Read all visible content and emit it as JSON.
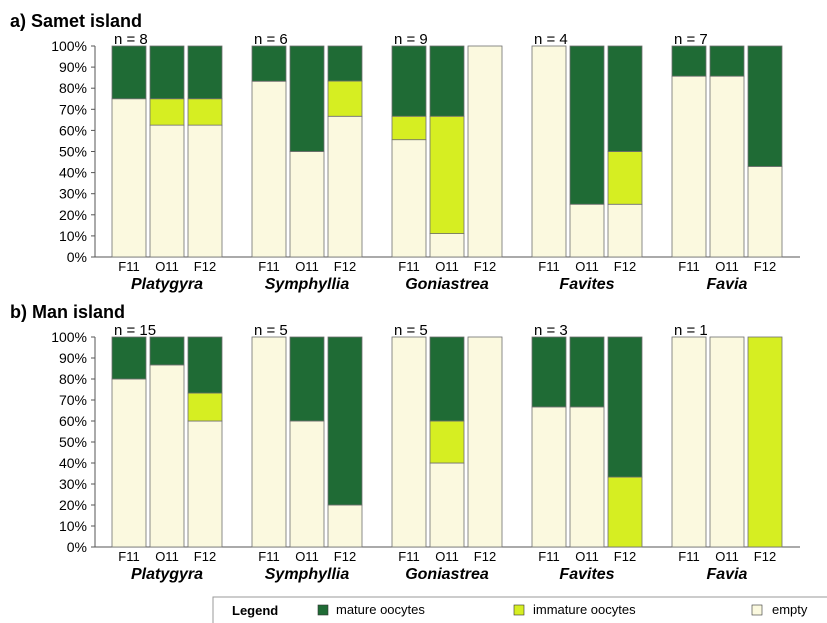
{
  "colors": {
    "mature": "#1f6b35",
    "immature": "#d6ee22",
    "empty": "#fbf9df",
    "stroke": "#6f6f6f"
  },
  "legend": {
    "title": "Legend",
    "items": [
      {
        "key": "mature",
        "label": "mature oocytes"
      },
      {
        "key": "immature",
        "label": "immature oocytes"
      },
      {
        "key": "empty",
        "label": "empty"
      }
    ]
  },
  "chart_data": [
    {
      "type": "bar",
      "stacked": true,
      "title": "a) Samet island",
      "yticks": [
        "0%",
        "10%",
        "20%",
        "30%",
        "40%",
        "50%",
        "60%",
        "70%",
        "80%",
        "90%",
        "100%"
      ],
      "ylim": [
        0,
        100
      ],
      "stack_order": [
        "empty",
        "immature",
        "mature"
      ],
      "groups": [
        {
          "genus": "Platygyra",
          "n_label": "n = 8",
          "bars": [
            {
              "label": "F11",
              "empty": 75,
              "immature": 0,
              "mature": 25
            },
            {
              "label": "O11",
              "empty": 62.5,
              "immature": 12.5,
              "mature": 25
            },
            {
              "label": "F12",
              "empty": 62.5,
              "immature": 12.5,
              "mature": 25
            }
          ]
        },
        {
          "genus": "Symphyllia",
          "n_label": "n = 6",
          "bars": [
            {
              "label": "F11",
              "empty": 83.3,
              "immature": 0,
              "mature": 16.7
            },
            {
              "label": "O11",
              "empty": 50,
              "immature": 0,
              "mature": 50
            },
            {
              "label": "F12",
              "empty": 66.7,
              "immature": 16.7,
              "mature": 16.6
            }
          ]
        },
        {
          "genus": "Goniastrea",
          "n_label": "n = 9",
          "bars": [
            {
              "label": "F11",
              "empty": 55.6,
              "immature": 11.1,
              "mature": 33.3
            },
            {
              "label": "O11",
              "empty": 11.1,
              "immature": 55.6,
              "mature": 33.3
            },
            {
              "label": "F12",
              "empty": 100,
              "immature": 0,
              "mature": 0
            }
          ]
        },
        {
          "genus": "Favites",
          "n_label": "n = 4",
          "bars": [
            {
              "label": "F11",
              "empty": 100,
              "immature": 0,
              "mature": 0
            },
            {
              "label": "O11",
              "empty": 25,
              "immature": 0,
              "mature": 75
            },
            {
              "label": "F12",
              "empty": 25,
              "immature": 25,
              "mature": 50
            }
          ]
        },
        {
          "genus": "Favia",
          "n_label": "n = 7",
          "bars": [
            {
              "label": "F11",
              "empty": 85.7,
              "immature": 0,
              "mature": 14.3
            },
            {
              "label": "O11",
              "empty": 85.7,
              "immature": 0,
              "mature": 14.3
            },
            {
              "label": "F12",
              "empty": 42.9,
              "immature": 0,
              "mature": 57.1
            }
          ]
        }
      ]
    },
    {
      "type": "bar",
      "stacked": true,
      "title": "b) Man island",
      "yticks": [
        "0%",
        "10%",
        "20%",
        "30%",
        "40%",
        "50%",
        "60%",
        "70%",
        "80%",
        "90%",
        "100%"
      ],
      "ylim": [
        0,
        100
      ],
      "stack_order": [
        "empty",
        "immature",
        "mature"
      ],
      "groups": [
        {
          "genus": "Platygyra",
          "n_label": "n = 15",
          "bars": [
            {
              "label": "F11",
              "empty": 80,
              "immature": 0,
              "mature": 20
            },
            {
              "label": "O11",
              "empty": 86.7,
              "immature": 0,
              "mature": 13.3
            },
            {
              "label": "F12",
              "empty": 60,
              "immature": 13.3,
              "mature": 26.7
            }
          ]
        },
        {
          "genus": "Symphyllia",
          "n_label": "n = 5",
          "bars": [
            {
              "label": "F11",
              "empty": 100,
              "immature": 0,
              "mature": 0
            },
            {
              "label": "O11",
              "empty": 60,
              "immature": 0,
              "mature": 40
            },
            {
              "label": "F12",
              "empty": 20,
              "immature": 0,
              "mature": 80
            }
          ]
        },
        {
          "genus": "Goniastrea",
          "n_label": "n = 5",
          "bars": [
            {
              "label": "F11",
              "empty": 100,
              "immature": 0,
              "mature": 0
            },
            {
              "label": "O11",
              "empty": 40,
              "immature": 20,
              "mature": 40
            },
            {
              "label": "F12",
              "empty": 100,
              "immature": 0,
              "mature": 0
            }
          ]
        },
        {
          "genus": "Favites",
          "n_label": "n = 3",
          "bars": [
            {
              "label": "F11",
              "empty": 66.7,
              "immature": 0,
              "mature": 33.3
            },
            {
              "label": "O11",
              "empty": 66.7,
              "immature": 0,
              "mature": 33.3
            },
            {
              "label": "F12",
              "empty": 0,
              "immature": 33.3,
              "mature": 66.7
            }
          ]
        },
        {
          "genus": "Favia",
          "n_label": "n = 1",
          "bars": [
            {
              "label": "F11",
              "empty": 100,
              "immature": 0,
              "mature": 0
            },
            {
              "label": "O11",
              "empty": 100,
              "immature": 0,
              "mature": 0
            },
            {
              "label": "F12",
              "empty": 0,
              "immature": 100,
              "mature": 0
            }
          ]
        }
      ]
    }
  ]
}
